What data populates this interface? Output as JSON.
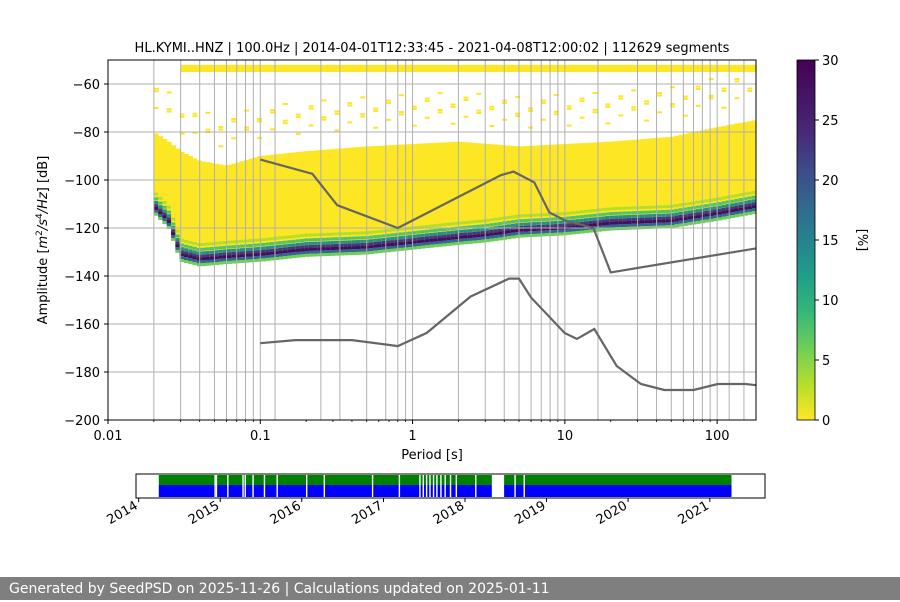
{
  "chart_data": [
    {
      "type": "heatmap",
      "title": "HL.KYMI..HNZ | 100.0Hz | 2014-04-01T12:33:45 - 2021-04-08T12:00:02 | 112629 segments",
      "xlabel": "Period [s]",
      "ylabel_parts": [
        "Amplitude [",
        "m",
        "2",
        "/s",
        "4",
        "/Hz",
        "] [dB]"
      ],
      "x_scale": "log",
      "xlim": [
        0.01,
        180
      ],
      "ylim": [
        -200,
        -50
      ],
      "x_ticks": [
        0.01,
        0.1,
        1,
        10,
        100
      ],
      "x_tick_labels": [
        "0.01",
        "0.1",
        "1",
        "10",
        "100"
      ],
      "y_ticks": [
        -200,
        -180,
        -160,
        -140,
        -120,
        -100,
        -80,
        -60
      ],
      "y_tick_labels": [
        "−200",
        "−180",
        "−160",
        "−140",
        "−120",
        "−100",
        "−80",
        "−60"
      ],
      "grid_periods": [
        0.02,
        0.03,
        0.04,
        0.05,
        0.06,
        0.07,
        0.08,
        0.09,
        0.1,
        0.125,
        0.25,
        0.3333,
        0.5,
        0.6667,
        0.8,
        0.9,
        1,
        2,
        3,
        4,
        5,
        6,
        7,
        8,
        9,
        10,
        16.5,
        30,
        40,
        50,
        60,
        70,
        80,
        90,
        100,
        120,
        150
      ],
      "colorbar": {
        "label": "[%]",
        "range": [
          0,
          30
        ],
        "ticks": [
          0,
          5,
          10,
          15,
          20,
          25,
          30
        ],
        "colormap": "viridis_r"
      },
      "density": {
        "mode_band": [
          [
            0.02,
            -111
          ],
          [
            0.025,
            -117
          ],
          [
            0.03,
            -131
          ],
          [
            0.04,
            -133
          ],
          [
            0.06,
            -132
          ],
          [
            0.1,
            -131
          ],
          [
            0.2,
            -129
          ],
          [
            0.5,
            -128
          ],
          [
            1,
            -126
          ],
          [
            2,
            -124
          ],
          [
            3,
            -123
          ],
          [
            5,
            -121
          ],
          [
            10,
            -120
          ],
          [
            20,
            -118
          ],
          [
            50,
            -117
          ],
          [
            100,
            -114
          ],
          [
            180,
            -111
          ]
        ],
        "upper_envelope": [
          [
            0.02,
            -80
          ],
          [
            0.025,
            -84
          ],
          [
            0.03,
            -88
          ],
          [
            0.04,
            -92
          ],
          [
            0.06,
            -94
          ],
          [
            0.1,
            -90
          ],
          [
            0.2,
            -88
          ],
          [
            0.5,
            -86
          ],
          [
            1,
            -85
          ],
          [
            2,
            -84
          ],
          [
            5,
            -86
          ],
          [
            10,
            -85
          ],
          [
            20,
            -84
          ],
          [
            50,
            -82
          ],
          [
            100,
            -78
          ],
          [
            180,
            -75
          ]
        ],
        "top_band": [
          0.03,
          180,
          -55,
          -52
        ]
      },
      "series": [
        {
          "name": "NHNM",
          "color": "#666666",
          "x": [
            0.1,
            0.22,
            0.32,
            0.8,
            3.8,
            4.6,
            6.3,
            7.9,
            10,
            15.4,
            20,
            180
          ],
          "y": [
            -91.5,
            -97.4,
            -110.5,
            -120,
            -98,
            -96.5,
            -101,
            -113.5,
            -116.8,
            -120,
            -138.5,
            -128.5
          ]
        },
        {
          "name": "NLNM",
          "color": "#666666",
          "x": [
            0.1,
            0.17,
            0.4,
            0.8,
            1.24,
            2.4,
            4.3,
            5,
            6,
            10,
            12,
            15.6,
            21.9,
            31.6,
            45,
            70,
            101,
            154,
            180
          ],
          "y": [
            -168,
            -166.7,
            -166.7,
            -169.2,
            -163.7,
            -148.6,
            -141.1,
            -141.1,
            -149,
            -163.8,
            -166.2,
            -162.1,
            -177.5,
            -185,
            -187.5,
            -187.5,
            -185,
            -185,
            -185.5
          ]
        }
      ]
    },
    {
      "type": "timeline",
      "x_ticks": [
        "2014",
        "2015",
        "2016",
        "2017",
        "2018",
        "2019",
        "2020",
        "2021"
      ],
      "data_start": "2014-04-01",
      "data_end": "2021-04-08",
      "gaps": [
        "2014-12-06",
        "2014-12-12",
        "2015-02-01",
        "2015-04-10",
        "2015-04-20",
        "2015-05-25",
        "2015-07-15",
        "2015-09-10",
        "2016-01-20",
        "2016-04-08",
        "2016-11-10",
        "2017-03-10",
        "2017-06-10",
        "2017-06-25",
        "2017-07-10",
        "2017-07-25",
        "2017-08-10",
        "2017-08-25",
        "2017-09-12",
        "2017-10-01",
        "2017-10-25",
        "2017-11-20",
        "2018-02-15",
        "2018-06-01",
        "2018-06-15",
        "2018-08-10",
        "2018-09-20"
      ],
      "big_gap": [
        "2018-05-01",
        "2018-06-25"
      ],
      "colors": {
        "upper": "#008000",
        "lower": "#0000ff"
      }
    }
  ],
  "footer": {
    "text": "Generated by SeedPSD on 2025-11-26 | Calculations updated on 2025-01-11"
  }
}
